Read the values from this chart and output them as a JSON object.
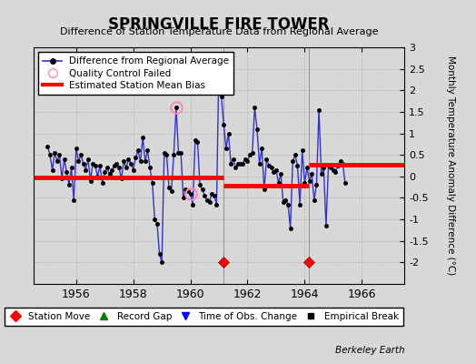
{
  "title": "SPRINGVILLE FIRE TOWER",
  "subtitle": "Difference of Station Temperature Data from Regional Average",
  "ylabel": "Monthly Temperature Anomaly Difference (°C)",
  "credit": "Berkeley Earth",
  "xlim": [
    1954.5,
    1967.5
  ],
  "ylim": [
    -2.5,
    3.0
  ],
  "yticks": [
    -2,
    -1.5,
    -1,
    -0.5,
    0,
    0.5,
    1,
    1.5,
    2,
    2.5,
    3
  ],
  "xticks": [
    1956,
    1958,
    1960,
    1962,
    1964,
    1966
  ],
  "bg_color": "#d8d8d8",
  "line_color": "#3333cc",
  "marker_color": "#000000",
  "bias_color": "#ff0000",
  "vline_color": "#999999",
  "time_start": 1955.0,
  "time_step": 0.08333,
  "time_series": [
    0.7,
    0.5,
    0.15,
    0.55,
    0.35,
    0.5,
    -0.05,
    0.4,
    0.1,
    -0.2,
    0.2,
    -0.55,
    0.65,
    0.35,
    0.5,
    0.3,
    0.15,
    0.4,
    -0.1,
    0.3,
    0.25,
    0.0,
    0.25,
    -0.15,
    0.1,
    0.2,
    0.05,
    0.15,
    0.25,
    0.3,
    0.2,
    -0.05,
    0.35,
    0.2,
    0.4,
    0.3,
    0.15,
    0.45,
    0.6,
    0.35,
    0.9,
    0.35,
    0.6,
    0.2,
    -0.15,
    -1.0,
    -1.1,
    -1.8,
    -2.0,
    0.55,
    0.5,
    -0.25,
    -0.35,
    0.5,
    1.6,
    0.55,
    0.55,
    -0.5,
    -0.3,
    -0.35,
    -0.4,
    -0.65,
    0.85,
    0.8,
    -0.2,
    -0.3,
    -0.45,
    -0.55,
    -0.6,
    -0.4,
    -0.45,
    -0.65,
    2.75,
    1.85,
    1.2,
    0.65,
    1.0,
    0.3,
    0.4,
    0.2,
    0.3,
    0.3,
    0.3,
    0.4,
    0.35,
    0.5,
    0.55,
    1.6,
    1.1,
    0.3,
    0.65,
    -0.3,
    0.4,
    0.25,
    0.2,
    0.1,
    0.15,
    -0.15,
    0.05,
    -0.6,
    -0.55,
    -0.65,
    -1.2,
    0.35,
    0.5,
    0.25,
    -0.65,
    0.6,
    -0.15,
    0.2,
    -0.1,
    0.05,
    -0.55,
    -0.2,
    1.55,
    0.05,
    0.2,
    -1.15,
    0.25,
    0.2,
    0.15,
    0.1,
    0.25,
    0.35,
    0.3,
    -0.15
  ],
  "qc_failed_indices": [
    54,
    60
  ],
  "bias_segments": [
    {
      "xstart": 1954.5,
      "xend": 1961.15,
      "bias": -0.02
    },
    {
      "xstart": 1961.15,
      "xend": 1964.15,
      "bias": -0.22
    },
    {
      "xstart": 1964.15,
      "xend": 1967.5,
      "bias": 0.28
    }
  ],
  "vlines": [
    1961.15,
    1964.15
  ],
  "station_moves": [
    1961.15,
    1964.15
  ]
}
